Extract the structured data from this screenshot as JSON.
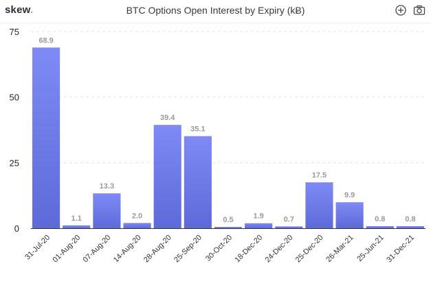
{
  "header": {
    "logo_text": "skew",
    "logo_dot": ".",
    "title": "BTC Options Open Interest by Expiry (kɃ)",
    "icons": [
      "zoom-in-icon",
      "camera-icon"
    ]
  },
  "colors": {
    "bar_top": "#7f8af5",
    "bar_bottom": "#5d6ad8",
    "logo_accent": "#f2a900"
  },
  "chart_data": {
    "type": "bar",
    "title": "BTC Options Open Interest by Expiry (kɃ)",
    "xlabel": "",
    "ylabel": "",
    "ylim": [
      0,
      75
    ],
    "yticks": [
      0,
      25,
      50,
      75
    ],
    "grid": true,
    "categories": [
      "31-Jul-20",
      "01-Aug-20",
      "07-Aug-20",
      "14-Aug-20",
      "28-Aug-20",
      "25-Sep-20",
      "30-Oct-20",
      "18-Dec-20",
      "24-Dec-20",
      "25-Dec-20",
      "26-Mar-21",
      "25-Jun-21",
      "31-Dec-21"
    ],
    "values": [
      68.9,
      1.1,
      13.3,
      2.0,
      39.4,
      35.1,
      0.5,
      1.9,
      0.7,
      17.5,
      9.9,
      0.8,
      0.8
    ],
    "data_labels": [
      "68.9",
      "1.1",
      "13.3",
      "2.0",
      "39.4",
      "35.1",
      "0.5",
      "1.9",
      "0.7",
      "17.5",
      "9.9",
      "0.8",
      "0.8"
    ]
  }
}
